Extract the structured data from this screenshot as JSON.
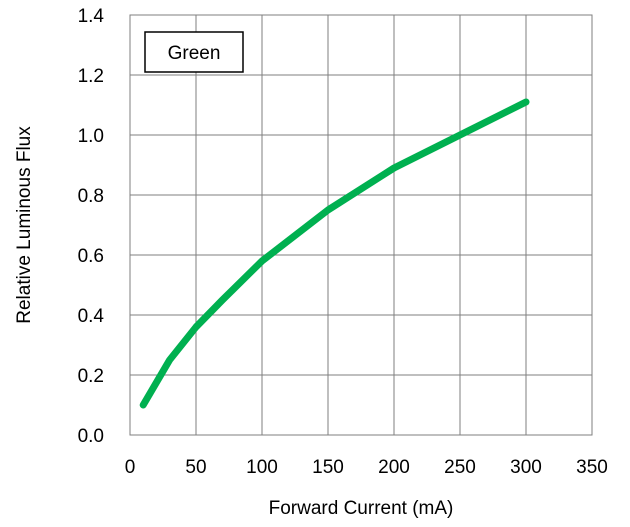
{
  "chart_data": {
    "type": "line",
    "title": "",
    "xlabel": "Forward Current (mA)",
    "ylabel": "Relative Luminous Flux",
    "xlim": [
      0,
      350
    ],
    "ylim": [
      0.0,
      1.4
    ],
    "x_ticks": [
      "0",
      "50",
      "100",
      "150",
      "200",
      "250",
      "300",
      "350"
    ],
    "y_ticks": [
      "0.0",
      "0.2",
      "0.4",
      "0.6",
      "0.8",
      "1.0",
      "1.2",
      "1.4"
    ],
    "grid": true,
    "legend_position": "top-left",
    "series": [
      {
        "name": "Green",
        "color": "#00b050",
        "x": [
          10,
          30,
          50,
          70,
          100,
          150,
          200,
          250,
          300
        ],
        "y": [
          0.1,
          0.25,
          0.36,
          0.45,
          0.58,
          0.75,
          0.89,
          1.0,
          1.11
        ]
      }
    ]
  }
}
